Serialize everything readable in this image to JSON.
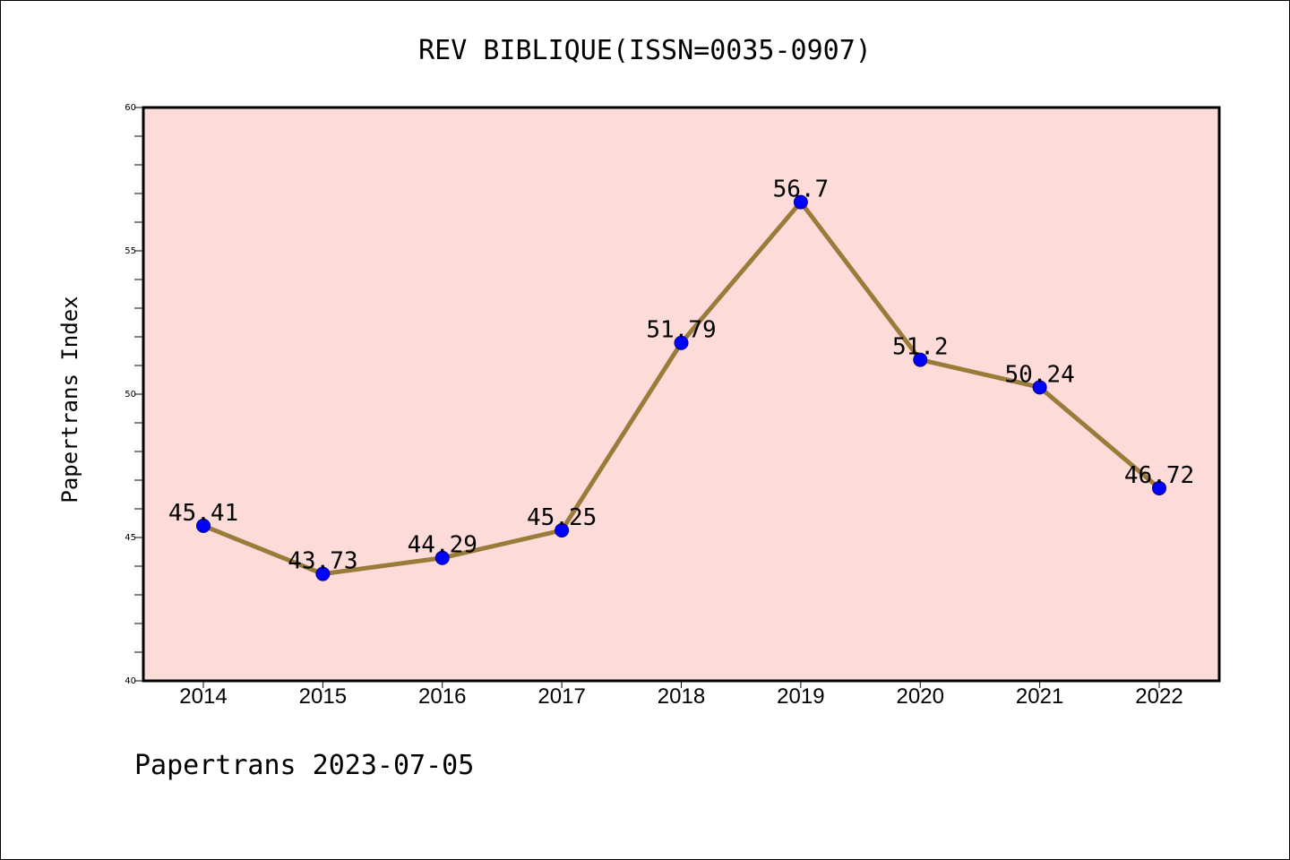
{
  "chart_data": {
    "type": "line",
    "title": "REV BIBLIQUE(ISSN=0035-0907)",
    "xlabel": "",
    "ylabel": "Papertrans Index",
    "footer": "Papertrans 2023-07-05",
    "categories": [
      "2014",
      "2015",
      "2016",
      "2017",
      "2018",
      "2019",
      "2020",
      "2021",
      "2022"
    ],
    "series": [
      {
        "values": [
          45.41,
          43.73,
          44.29,
          45.25,
          51.79,
          56.7,
          51.2,
          50.24,
          46.72
        ],
        "labels": [
          "45.41",
          "43.73",
          "44.29",
          "45.25",
          "51.79",
          "56.7",
          "51.2",
          "50.24",
          "46.72"
        ]
      }
    ],
    "ylim": [
      40,
      60
    ],
    "yticks": [
      "40",
      "45",
      "50",
      "55",
      "60"
    ],
    "grid": false,
    "legend": "none",
    "colors": {
      "plot_background": "#fddbd8",
      "line": "#9a7b3a",
      "marker": "#0000ff"
    }
  }
}
